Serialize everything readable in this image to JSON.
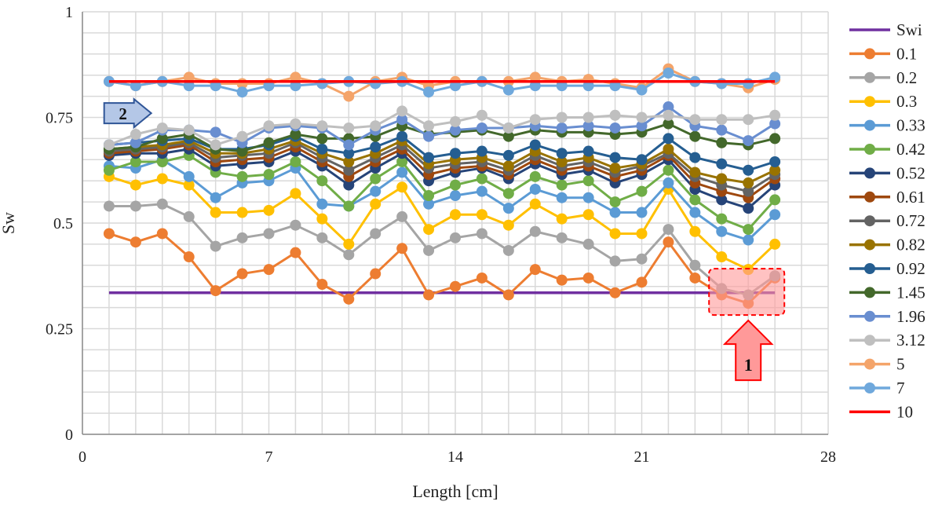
{
  "chart_data": {
    "type": "line",
    "title": "",
    "xlabel": "Length [cm]",
    "ylabel": "Sw",
    "xlim": [
      0,
      28
    ],
    "ylim": [
      0,
      1
    ],
    "xticks": [
      "0",
      "7",
      "14",
      "21",
      "28"
    ],
    "yticks": [
      "0",
      "0.25",
      "0.5",
      "0.75",
      "1"
    ],
    "grid": true,
    "legend_position": "right",
    "x": [
      1,
      2,
      3,
      4,
      5,
      6,
      7,
      8,
      9,
      10,
      11,
      12,
      13,
      14,
      15,
      16,
      17,
      18,
      19,
      20,
      21,
      22,
      23,
      24,
      25,
      26
    ],
    "series": [
      {
        "name": "Swi",
        "color": "#7030a0",
        "marker": false,
        "values": [
          0.335,
          0.335,
          0.335,
          0.335,
          0.335,
          0.335,
          0.335,
          0.335,
          0.335,
          0.335,
          0.335,
          0.335,
          0.335,
          0.335,
          0.335,
          0.335,
          0.335,
          0.335,
          0.335,
          0.335,
          0.335,
          0.335,
          0.335,
          0.335,
          0.335,
          0.335
        ]
      },
      {
        "name": "0.1",
        "color": "#ed7d31",
        "marker": true,
        "values": [
          0.475,
          0.455,
          0.475,
          0.42,
          0.34,
          0.38,
          0.39,
          0.43,
          0.355,
          0.32,
          0.38,
          0.44,
          0.33,
          0.35,
          0.37,
          0.33,
          0.39,
          0.365,
          0.37,
          0.335,
          0.36,
          0.455,
          0.37,
          0.33,
          0.31,
          0.37
        ]
      },
      {
        "name": "0.2",
        "color": "#a5a5a5",
        "marker": true,
        "values": [
          0.54,
          0.54,
          0.545,
          0.515,
          0.445,
          0.465,
          0.475,
          0.495,
          0.465,
          0.425,
          0.475,
          0.515,
          0.435,
          0.465,
          0.475,
          0.435,
          0.48,
          0.465,
          0.45,
          0.41,
          0.415,
          0.485,
          0.4,
          0.345,
          0.33,
          0.375
        ]
      },
      {
        "name": "0.3",
        "color": "#ffc000",
        "marker": true,
        "values": [
          0.61,
          0.59,
          0.605,
          0.59,
          0.525,
          0.525,
          0.53,
          0.57,
          0.51,
          0.45,
          0.545,
          0.585,
          0.485,
          0.52,
          0.52,
          0.495,
          0.545,
          0.51,
          0.52,
          0.475,
          0.475,
          0.58,
          0.48,
          0.42,
          0.39,
          0.45
        ]
      },
      {
        "name": "0.33",
        "color": "#5b9bd5",
        "marker": true,
        "values": [
          0.635,
          0.63,
          0.65,
          0.61,
          0.56,
          0.595,
          0.6,
          0.63,
          0.545,
          0.54,
          0.575,
          0.62,
          0.545,
          0.565,
          0.575,
          0.535,
          0.58,
          0.56,
          0.56,
          0.525,
          0.525,
          0.595,
          0.525,
          0.48,
          0.46,
          0.52
        ]
      },
      {
        "name": "0.42",
        "color": "#70ad47",
        "marker": true,
        "values": [
          0.625,
          0.645,
          0.645,
          0.66,
          0.62,
          0.61,
          0.615,
          0.645,
          0.6,
          0.54,
          0.605,
          0.645,
          0.565,
          0.59,
          0.605,
          0.57,
          0.61,
          0.59,
          0.6,
          0.55,
          0.575,
          0.625,
          0.555,
          0.51,
          0.485,
          0.555
        ]
      },
      {
        "name": "0.52",
        "color": "#264478",
        "marker": true,
        "values": [
          0.66,
          0.665,
          0.665,
          0.675,
          0.635,
          0.64,
          0.645,
          0.67,
          0.635,
          0.59,
          0.63,
          0.665,
          0.6,
          0.62,
          0.63,
          0.605,
          0.64,
          0.615,
          0.625,
          0.595,
          0.615,
          0.65,
          0.58,
          0.555,
          0.535,
          0.59
        ]
      },
      {
        "name": "0.61",
        "color": "#9e480e",
        "marker": true,
        "values": [
          0.665,
          0.67,
          0.675,
          0.685,
          0.645,
          0.65,
          0.655,
          0.68,
          0.645,
          0.61,
          0.645,
          0.675,
          0.615,
          0.63,
          0.635,
          0.615,
          0.65,
          0.625,
          0.635,
          0.61,
          0.625,
          0.66,
          0.595,
          0.575,
          0.56,
          0.605
        ]
      },
      {
        "name": "0.72",
        "color": "#636363",
        "marker": true,
        "values": [
          0.67,
          0.675,
          0.68,
          0.69,
          0.655,
          0.66,
          0.665,
          0.69,
          0.655,
          0.625,
          0.655,
          0.685,
          0.63,
          0.64,
          0.645,
          0.625,
          0.66,
          0.635,
          0.645,
          0.62,
          0.635,
          0.665,
          0.61,
          0.59,
          0.575,
          0.615
        ]
      },
      {
        "name": "0.82",
        "color": "#997300",
        "marker": true,
        "values": [
          0.675,
          0.68,
          0.685,
          0.695,
          0.665,
          0.665,
          0.675,
          0.695,
          0.665,
          0.645,
          0.665,
          0.695,
          0.64,
          0.65,
          0.655,
          0.635,
          0.67,
          0.645,
          0.655,
          0.63,
          0.64,
          0.675,
          0.62,
          0.605,
          0.595,
          0.625
        ]
      },
      {
        "name": "0.92",
        "color": "#255e91",
        "marker": true,
        "values": [
          0.685,
          0.69,
          0.695,
          0.7,
          0.675,
          0.675,
          0.685,
          0.705,
          0.675,
          0.665,
          0.68,
          0.705,
          0.655,
          0.665,
          0.67,
          0.66,
          0.685,
          0.665,
          0.67,
          0.655,
          0.65,
          0.7,
          0.655,
          0.64,
          0.625,
          0.645
        ]
      },
      {
        "name": "1.45",
        "color": "#43682b",
        "marker": true,
        "values": [
          0.675,
          0.68,
          0.7,
          0.71,
          0.675,
          0.67,
          0.69,
          0.71,
          0.7,
          0.7,
          0.705,
          0.73,
          0.71,
          0.715,
          0.72,
          0.705,
          0.72,
          0.715,
          0.715,
          0.71,
          0.715,
          0.735,
          0.705,
          0.69,
          0.685,
          0.7
        ]
      },
      {
        "name": "1.96",
        "color": "#698ed0",
        "marker": true,
        "values": [
          0.685,
          0.69,
          0.72,
          0.72,
          0.715,
          0.69,
          0.725,
          0.73,
          0.725,
          0.685,
          0.72,
          0.745,
          0.705,
          0.72,
          0.725,
          0.725,
          0.73,
          0.725,
          0.73,
          0.725,
          0.73,
          0.775,
          0.73,
          0.72,
          0.695,
          0.735
        ]
      },
      {
        "name": "3.12",
        "color": "#bfbfbf",
        "marker": true,
        "values": [
          0.685,
          0.71,
          0.725,
          0.72,
          0.685,
          0.705,
          0.73,
          0.735,
          0.73,
          0.725,
          0.73,
          0.765,
          0.73,
          0.74,
          0.755,
          0.725,
          0.745,
          0.75,
          0.75,
          0.755,
          0.75,
          0.755,
          0.745,
          0.745,
          0.745,
          0.755
        ]
      },
      {
        "name": "5",
        "color": "#f4a46a",
        "marker": true,
        "values": [
          0.835,
          0.825,
          0.835,
          0.845,
          0.83,
          0.83,
          0.83,
          0.845,
          0.83,
          0.8,
          0.835,
          0.845,
          0.825,
          0.835,
          0.835,
          0.835,
          0.845,
          0.835,
          0.84,
          0.83,
          0.82,
          0.865,
          0.835,
          0.83,
          0.82,
          0.84
        ]
      },
      {
        "name": "7",
        "color": "#6fa8dc",
        "marker": true,
        "values": [
          0.835,
          0.825,
          0.835,
          0.825,
          0.825,
          0.81,
          0.825,
          0.825,
          0.83,
          0.835,
          0.83,
          0.835,
          0.81,
          0.825,
          0.835,
          0.815,
          0.825,
          0.825,
          0.825,
          0.825,
          0.815,
          0.855,
          0.835,
          0.83,
          0.83,
          0.845
        ]
      },
      {
        "name": "10",
        "color": "#ff0000",
        "marker": false,
        "values": [
          0.835,
          0.835,
          0.835,
          0.835,
          0.835,
          0.835,
          0.835,
          0.835,
          0.835,
          0.835,
          0.835,
          0.835,
          0.835,
          0.835,
          0.835,
          0.835,
          0.835,
          0.835,
          0.835,
          0.835,
          0.835,
          0.835,
          0.835,
          0.835,
          0.835,
          0.835
        ]
      }
    ],
    "annotations": [
      {
        "label": "1",
        "type": "up-arrow-with-highlight-box",
        "color": "#ff9999",
        "x": 25,
        "y": 0.34
      },
      {
        "label": "2",
        "type": "right-arrow",
        "color": "#b4c7e7",
        "x": 1.7,
        "y": 0.76
      }
    ]
  }
}
